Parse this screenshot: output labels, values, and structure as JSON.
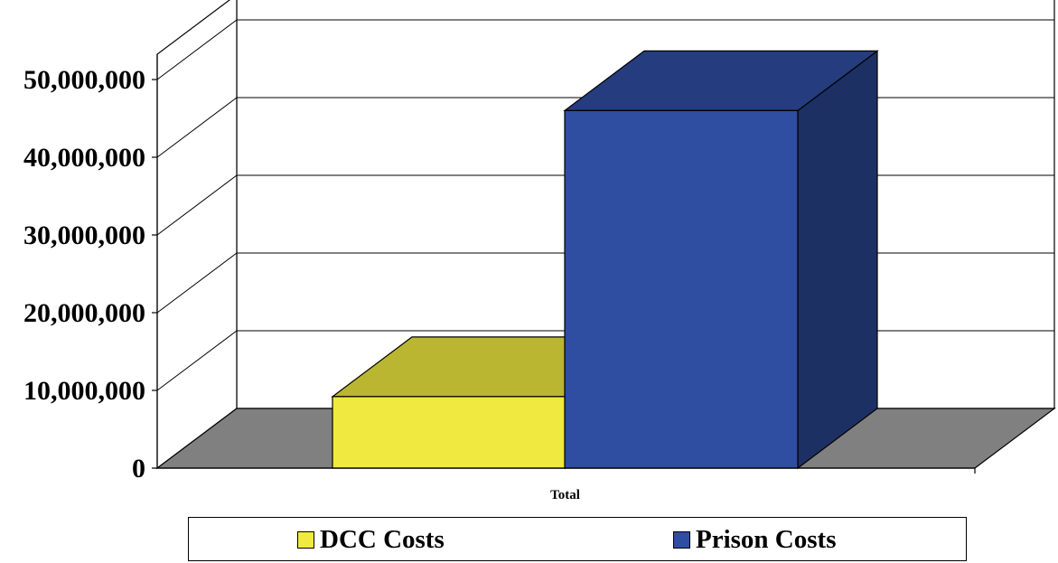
{
  "chart_data": {
    "type": "bar",
    "categories": [
      "Total"
    ],
    "series": [
      {
        "name": "DCC Costs",
        "values": [
          9200000
        ],
        "color": "#EFE940"
      },
      {
        "name": "Prison Costs",
        "values": [
          46000000
        ],
        "color": "#2F4EA2"
      }
    ],
    "yticks": [
      "0",
      "10,000,000",
      "20,000,000",
      "30,000,000",
      "40,000,000",
      "50,000,000"
    ],
    "ylim": [
      0,
      50000000
    ],
    "title": "",
    "xlabel": "",
    "ylabel": "",
    "grid": true,
    "legend_position": "bottom",
    "floor_color": "#808080"
  }
}
